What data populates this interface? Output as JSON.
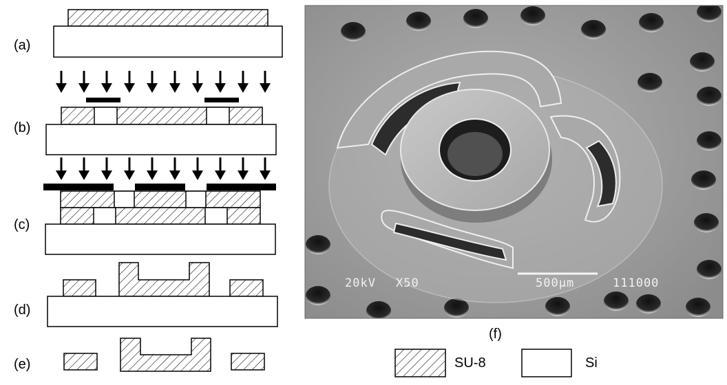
{
  "steps": [
    {
      "label": "(a)"
    },
    {
      "label": "(b)"
    },
    {
      "label": "(c)"
    },
    {
      "label": "(d)"
    },
    {
      "label": "(e)"
    }
  ],
  "sem": {
    "panel_label": "(f)",
    "voltage": "20kV",
    "magnification": "X50",
    "scale_bar": "500µm",
    "image_number": "111000"
  },
  "legend": {
    "items": [
      {
        "name": "SU-8",
        "fill": "hatched"
      },
      {
        "name": "Si",
        "fill": "plain"
      }
    ]
  },
  "colors": {
    "line": "#000000",
    "su8_hatch": "#000000",
    "mask": "#000000",
    "sem_background": "#9a9a9a",
    "sem_text": "#f2f2f2"
  },
  "icons": {
    "exposure": "down-arrow-icon"
  }
}
